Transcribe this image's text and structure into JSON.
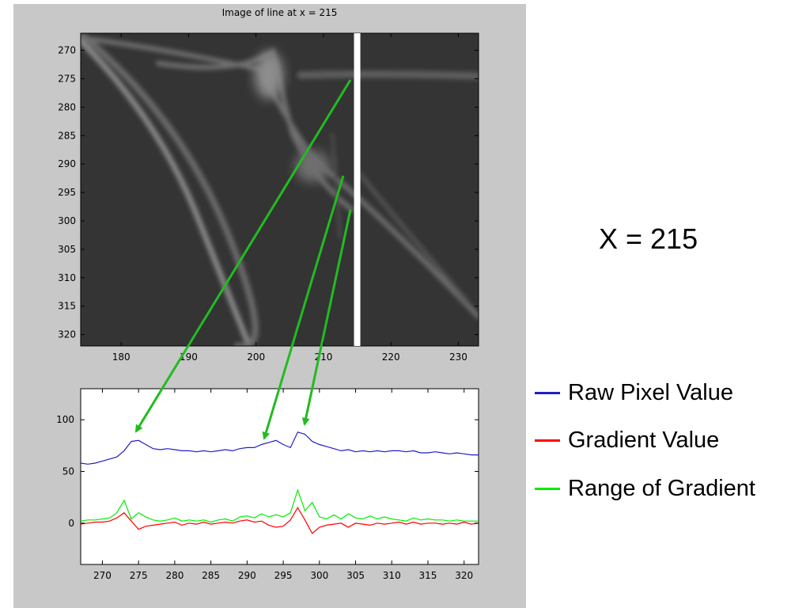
{
  "chart_data": [
    {
      "type": "heatmap",
      "title": "Image of line at x = 215",
      "x_ticks": [
        180,
        190,
        200,
        210,
        220,
        230
      ],
      "y_ticks": [
        270,
        275,
        280,
        285,
        290,
        295,
        300,
        305,
        310,
        315,
        320
      ],
      "xlim": [
        174,
        233
      ],
      "ylim": [
        267,
        322
      ],
      "y_reversed": true,
      "colormap": "gray",
      "marker_line": {
        "x": 215,
        "color": "#ffffff"
      }
    },
    {
      "type": "line",
      "title": "",
      "x_ticks": [
        270,
        275,
        280,
        285,
        290,
        295,
        300,
        305,
        310,
        315,
        320
      ],
      "y_ticks": [
        0,
        50,
        100
      ],
      "xlim": [
        267,
        322
      ],
      "ylim": [
        -40,
        130
      ],
      "x": [
        267,
        268,
        269,
        270,
        271,
        272,
        273,
        274,
        275,
        276,
        277,
        278,
        279,
        280,
        281,
        282,
        283,
        284,
        285,
        286,
        287,
        288,
        289,
        290,
        291,
        292,
        293,
        294,
        295,
        296,
        297,
        298,
        299,
        300,
        301,
        302,
        303,
        304,
        305,
        306,
        307,
        308,
        309,
        310,
        311,
        312,
        313,
        314,
        315,
        316,
        317,
        318,
        319,
        320,
        321,
        322
      ],
      "series": [
        {
          "name": "Raw Pixel Value",
          "color": "#1f1fcc",
          "values": [
            58,
            57,
            58,
            60,
            62,
            64,
            70,
            79,
            80,
            76,
            72,
            71,
            72,
            71,
            70,
            70,
            69,
            70,
            69,
            70,
            71,
            70,
            72,
            73,
            73,
            76,
            78,
            80,
            76,
            73,
            88,
            86,
            79,
            76,
            74,
            72,
            70,
            71,
            69,
            70,
            69,
            70,
            69,
            70,
            70,
            69,
            70,
            68,
            68,
            69,
            68,
            67,
            68,
            67,
            66,
            66
          ]
        },
        {
          "name": "Gradient Value",
          "color": "#ff0000",
          "values": [
            -1,
            0,
            1,
            1,
            2,
            5,
            10,
            2,
            -6,
            -3,
            -2,
            -1,
            0,
            1,
            -2,
            0,
            -1,
            1,
            -1,
            0,
            1,
            0,
            2,
            3,
            1,
            2,
            -2,
            -4,
            -3,
            3,
            15,
            3,
            -10,
            -4,
            -2,
            -1,
            0,
            -4,
            0,
            -1,
            -2,
            0,
            -1,
            0,
            1,
            -1,
            1,
            -1,
            0,
            0,
            -1,
            0,
            -1,
            1,
            -1,
            0
          ]
        },
        {
          "name": "Range of Gradient",
          "color": "#00ee00",
          "values": [
            2,
            3,
            3,
            4,
            5,
            10,
            22,
            4,
            10,
            6,
            3,
            2,
            3,
            5,
            2,
            3,
            2,
            3,
            1,
            3,
            4,
            2,
            6,
            7,
            5,
            9,
            6,
            8,
            6,
            10,
            32,
            12,
            20,
            6,
            4,
            8,
            4,
            9,
            5,
            4,
            7,
            4,
            6,
            4,
            3,
            2,
            5,
            3,
            4,
            3,
            3,
            2,
            3,
            2,
            2,
            2
          ]
        }
      ]
    }
  ],
  "annotation": {
    "big_label": "X = 215"
  },
  "legend": {
    "items": [
      {
        "label": "Raw Pixel Value",
        "color": "#1f1fcc"
      },
      {
        "label": "Gradient Value",
        "color": "#ff0000"
      },
      {
        "label": "Range of Gradient",
        "color": "#00ee00"
      }
    ]
  },
  "arrow_color": "#22bb22"
}
